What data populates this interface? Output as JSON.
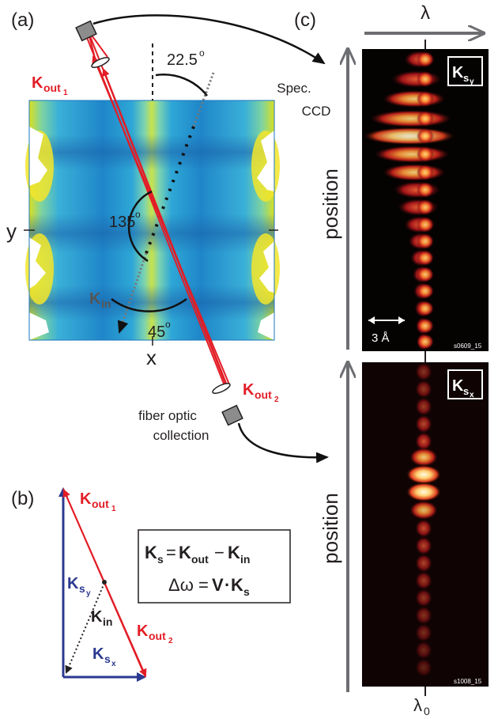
{
  "panels": {
    "a": "(a)",
    "b": "(b)",
    "c": "(c)"
  },
  "panel_a": {
    "angle_top": "22.5",
    "angle_mid": "135",
    "angle_bottom": "45",
    "degree": "o",
    "axis_x": "x",
    "axis_y": "y",
    "k_out1": {
      "base": "K",
      "sub": "out",
      "subsub": "1"
    },
    "k_out2": {
      "base": "K",
      "sub": "out",
      "subsub": "2"
    },
    "k_in": {
      "base": "K",
      "sub": "in"
    },
    "spec_ccd_line1": "Spec.",
    "spec_ccd_line2": "CCD",
    "fiber_line1": "fiber optic",
    "fiber_line2": "collection"
  },
  "panel_b": {
    "k_out1": {
      "base": "K",
      "sub": "out",
      "subsub": "1"
    },
    "k_out2": {
      "base": "K",
      "sub": "out",
      "subsub": "2"
    },
    "k_sy": {
      "base": "K",
      "sub": "s",
      "subsub": "y"
    },
    "k_sx": {
      "base": "K",
      "sub": "s",
      "subsub": "x"
    },
    "k_in": {
      "base": "K",
      "sub": "in"
    },
    "eq1": {
      "lhs": "K",
      "lhs_sub": "s",
      "eq": "=",
      "t1": "K",
      "t1_sub": "out",
      "minus": "−",
      "t2": "K",
      "t2_sub": "in"
    },
    "eq2": {
      "lhs": "Δω",
      "eq": "=",
      "v": "V",
      "dot": "·",
      "k": "K",
      "k_sub": "s"
    }
  },
  "panel_c": {
    "lambda": "λ",
    "lambda0": "λ",
    "lambda0_sub": "0",
    "position": "position",
    "scale_bar": "3 Å",
    "top_box": {
      "base": "K",
      "sub": "s",
      "subsub": "y"
    },
    "bottom_box": {
      "base": "K",
      "sub": "s",
      "subsub": "x"
    },
    "top_id": "s0609_15",
    "bottom_id": "s1008_15"
  },
  "colors": {
    "red": "#e21d26",
    "blue": "#2b3990",
    "dark": "#231f20",
    "gray_arrow": "#6d6e71"
  }
}
